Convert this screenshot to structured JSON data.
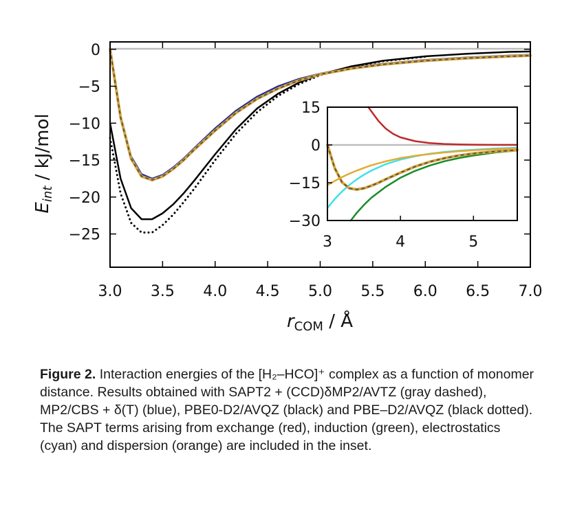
{
  "chart_data": [
    {
      "type": "line",
      "xlabel_main": "r",
      "xlabel_sub": "COM",
      "xlabel_unit": " / Å",
      "ylabel_main": "E",
      "ylabel_sub": "int",
      "ylabel_unit": " / kJ/mol",
      "xlim": [
        3.0,
        7.0
      ],
      "ylim": [
        -29.5,
        1.0
      ],
      "xticks": [
        3.0,
        3.5,
        4.0,
        4.5,
        5.0,
        5.5,
        6.0,
        6.5,
        7.0
      ],
      "xtick_labels": [
        "3.0",
        "3.5",
        "4.0",
        "4.5",
        "5.0",
        "5.5",
        "6.0",
        "6.5",
        "7.0"
      ],
      "yticks": [
        0,
        -5,
        -10,
        -15,
        -20,
        -25
      ],
      "ytick_labels": [
        "0",
        "−5",
        "−10",
        "−15",
        "−20",
        "−25"
      ],
      "series": [
        {
          "color": "#1f2a9a",
          "style": "solid",
          "x": [
            3.0,
            3.1,
            3.2,
            3.3,
            3.4,
            3.5,
            3.6,
            3.7,
            3.8,
            4.0,
            4.2,
            4.4,
            4.6,
            4.8,
            5.0,
            5.3,
            5.6,
            6.0,
            6.4,
            6.8,
            7.0
          ],
          "y": [
            0.0,
            -9.0,
            -14.5,
            -16.9,
            -17.5,
            -17.0,
            -16.0,
            -14.8,
            -13.4,
            -10.7,
            -8.3,
            -6.4,
            -5.0,
            -4.0,
            -3.3,
            -2.5,
            -1.95,
            -1.45,
            -1.1,
            -0.85,
            -0.75
          ]
        },
        {
          "color": "#000000",
          "style": "solid",
          "x": [
            3.0,
            3.1,
            3.2,
            3.3,
            3.4,
            3.5,
            3.6,
            3.7,
            3.8,
            4.0,
            4.2,
            4.4,
            4.6,
            4.8,
            5.0,
            5.3,
            5.6,
            6.0,
            6.4,
            6.8,
            7.0
          ],
          "y": [
            -10.0,
            -17.5,
            -21.5,
            -23.0,
            -23.0,
            -22.2,
            -21.0,
            -19.5,
            -17.8,
            -14.2,
            -10.8,
            -8.0,
            -6.0,
            -4.5,
            -3.4,
            -2.3,
            -1.55,
            -0.95,
            -0.6,
            -0.35,
            -0.3
          ]
        },
        {
          "color": "#000000",
          "style": "dotted",
          "x": [
            3.0,
            3.1,
            3.2,
            3.3,
            3.4,
            3.5,
            3.6,
            3.7,
            3.8,
            4.0,
            4.2,
            4.4,
            4.6,
            4.8,
            5.0,
            5.3,
            5.6,
            6.0
          ],
          "y": [
            -12.0,
            -19.5,
            -23.5,
            -24.8,
            -24.8,
            -23.8,
            -22.4,
            -20.7,
            -18.9,
            -15.0,
            -11.4,
            -8.5,
            -6.3,
            -4.7,
            -3.5,
            -2.4,
            -1.6,
            -1.0
          ]
        },
        {
          "color": "#d9a637",
          "style": "solid-gray-dashed",
          "x": [
            3.0,
            3.1,
            3.2,
            3.3,
            3.4,
            3.5,
            3.6,
            3.7,
            3.8,
            4.0,
            4.2,
            4.4,
            4.6,
            4.8,
            5.0,
            5.3,
            5.6,
            6.0,
            6.4,
            6.8,
            7.0
          ],
          "y": [
            0.0,
            -9.2,
            -14.8,
            -17.2,
            -17.7,
            -17.2,
            -16.2,
            -15.0,
            -13.6,
            -11.0,
            -8.6,
            -6.7,
            -5.3,
            -4.2,
            -3.4,
            -2.6,
            -2.05,
            -1.55,
            -1.2,
            -0.95,
            -0.85
          ]
        }
      ]
    },
    {
      "type": "line",
      "xlim": [
        3.0,
        5.6
      ],
      "ylim": [
        -30,
        15
      ],
      "xticks": [
        3,
        4,
        5
      ],
      "xtick_labels": [
        "3",
        "4",
        "5"
      ],
      "yticks": [
        15,
        0,
        -15,
        -30
      ],
      "ytick_labels": [
        "15",
        "0",
        "−15",
        "−30"
      ],
      "series": [
        {
          "color": "#c0282a",
          "style": "solid",
          "x": [
            3.56,
            3.7,
            3.8,
            3.9,
            4.0,
            4.2,
            4.4,
            4.6,
            4.8,
            5.0,
            5.3,
            5.6
          ],
          "y": [
            15,
            9.5,
            6.5,
            4.4,
            3.0,
            1.5,
            0.75,
            0.38,
            0.2,
            0.1,
            0.04,
            0.02
          ]
        },
        {
          "color": "#1a8a2a",
          "style": "solid",
          "x": [
            3.32,
            3.4,
            3.5,
            3.6,
            3.8,
            4.0,
            4.2,
            4.4,
            4.6,
            4.8,
            5.0,
            5.3,
            5.6
          ],
          "y": [
            -30,
            -27.0,
            -23.8,
            -21.0,
            -16.6,
            -13.0,
            -10.3,
            -8.2,
            -6.5,
            -5.2,
            -4.2,
            -3.0,
            -2.2
          ]
        },
        {
          "color": "#3fe0e8",
          "style": "solid",
          "x": [
            3.0,
            3.1,
            3.2,
            3.3,
            3.4,
            3.5,
            3.6,
            3.8,
            4.0,
            4.2,
            4.4,
            4.6,
            4.8,
            5.0,
            5.3,
            5.6
          ],
          "y": [
            -25.0,
            -21.5,
            -18.5,
            -15.9,
            -13.7,
            -11.8,
            -10.2,
            -7.6,
            -5.8,
            -4.5,
            -3.5,
            -2.8,
            -2.3,
            -1.9,
            -1.4,
            -1.1
          ]
        },
        {
          "color": "#e3aa33",
          "style": "solid",
          "x": [
            3.0,
            3.1,
            3.2,
            3.3,
            3.4,
            3.5,
            3.6,
            3.8,
            4.0,
            4.2,
            4.4,
            4.6,
            4.8,
            5.0,
            5.3,
            5.6
          ],
          "y": [
            -16.0,
            -14.3,
            -12.8,
            -11.4,
            -10.2,
            -9.1,
            -8.1,
            -6.5,
            -5.2,
            -4.3,
            -3.6,
            -3.0,
            -2.5,
            -2.1,
            -1.7,
            -1.4
          ]
        },
        {
          "color": "#d9a637",
          "style": "solid-gray-dashed",
          "x": [
            3.0,
            3.1,
            3.2,
            3.3,
            3.4,
            3.5,
            3.6,
            3.7,
            3.8,
            4.0,
            4.2,
            4.4,
            4.6,
            4.8,
            5.0,
            5.3,
            5.6
          ],
          "y": [
            0.0,
            -9.2,
            -14.8,
            -17.2,
            -17.7,
            -17.2,
            -16.2,
            -15.0,
            -13.6,
            -11.0,
            -8.6,
            -6.7,
            -5.3,
            -4.2,
            -3.4,
            -2.6,
            -2.05
          ]
        }
      ]
    }
  ],
  "caption": {
    "label": "Figure 2.",
    "text": " Interaction energies of the [H₂–HCO]⁺ complex as a function of monomer distance. Results obtained with SAPT2 + (CCD)δMP2/AVTZ (gray dashed), MP2/CBS + δ(T) (blue), PBE0-D2/AVQZ (black) and PBE–D2/AVQZ (black dotted). The SAPT terms arising from exchange (red), induction (green), electrostatics (cyan) and dispersion (orange) are included in the inset."
  }
}
